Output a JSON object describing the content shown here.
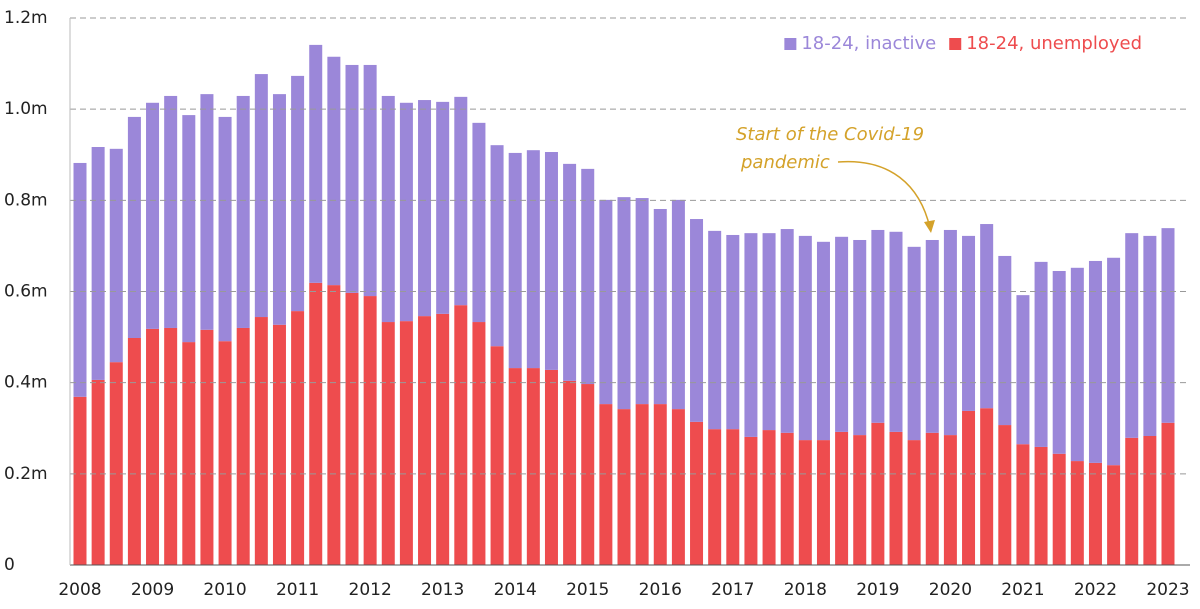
{
  "chart_data": {
    "type": "stacked_bar",
    "categories": [
      "2008",
      null,
      null,
      null,
      "2009",
      null,
      null,
      null,
      "2010",
      null,
      null,
      null,
      "2011",
      null,
      null,
      null,
      "2012",
      null,
      null,
      null,
      "2013",
      null,
      null,
      null,
      "2014",
      null,
      null,
      null,
      "2015",
      null,
      null,
      null,
      "2016",
      null,
      null,
      null,
      "2017",
      null,
      null,
      null,
      "2018",
      null,
      null,
      null,
      "2019",
      null,
      null,
      null,
      "2020",
      null,
      null,
      null,
      "2021",
      null,
      null,
      null,
      "2022",
      null,
      null,
      null,
      "2023"
    ],
    "series": [
      {
        "name": "18-24, unemployed",
        "color": "#ee4c4e",
        "values": [
          0.369,
          0.406,
          0.445,
          0.498,
          0.518,
          0.52,
          0.489,
          0.516,
          0.491,
          0.52,
          0.544,
          0.527,
          0.557,
          0.619,
          0.614,
          0.597,
          0.59,
          0.533,
          0.535,
          0.546,
          0.551,
          0.57,
          0.533,
          0.48,
          0.432,
          0.432,
          0.428,
          0.404,
          0.397,
          0.353,
          0.342,
          0.353,
          0.353,
          0.342,
          0.314,
          0.298,
          0.298,
          0.281,
          0.296,
          0.29,
          0.274,
          0.274,
          0.292,
          0.285,
          0.312,
          0.292,
          0.274,
          0.29,
          0.285,
          0.338,
          0.344,
          0.307,
          0.265,
          0.259,
          0.244,
          0.228,
          0.224,
          0.219,
          0.279,
          0.283,
          0.312
        ]
      },
      {
        "name": "18-24, inactive",
        "color": "#9b87d9",
        "values": [
          0.513,
          0.511,
          0.468,
          0.485,
          0.496,
          0.509,
          0.498,
          0.517,
          0.492,
          0.509,
          0.533,
          0.506,
          0.516,
          0.522,
          0.501,
          0.5,
          0.507,
          0.496,
          0.479,
          0.474,
          0.465,
          0.457,
          0.437,
          0.441,
          0.472,
          0.478,
          0.478,
          0.476,
          0.472,
          0.448,
          0.465,
          0.452,
          0.428,
          0.459,
          0.445,
          0.435,
          0.426,
          0.447,
          0.432,
          0.447,
          0.448,
          0.435,
          0.428,
          0.428,
          0.423,
          0.439,
          0.424,
          0.423,
          0.45,
          0.384,
          0.404,
          0.371,
          0.327,
          0.406,
          0.401,
          0.424,
          0.443,
          0.455,
          0.449,
          0.439,
          0.427
        ]
      }
    ],
    "ylim": [
      0,
      1.2
    ],
    "yticks": [
      0,
      {
        "value": 0.2,
        "label": "0.2m"
      },
      {
        "value": 0.4,
        "label": "0.4m"
      },
      {
        "value": 0.6,
        "label": "0.6m"
      },
      {
        "value": 0.8,
        "label": "0.8m"
      },
      {
        "value": 1.0,
        "label": "1.0m"
      },
      {
        "value": 1.2,
        "label": "1.2m"
      }
    ],
    "grid": true,
    "legend": "top-right",
    "annotation": {
      "lines": [
        "Start of the Covid-19",
        "pandemic"
      ],
      "color": "#d4a22a"
    }
  }
}
